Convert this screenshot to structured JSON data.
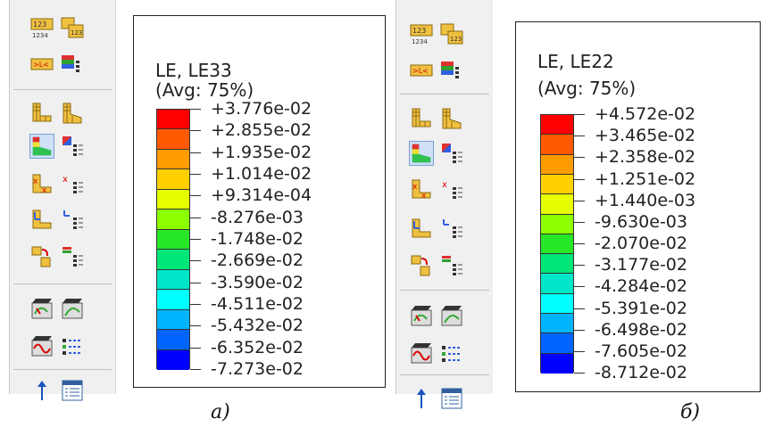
{
  "legend_a": {
    "title_line1": "LE, LE33",
    "title_line2": "(Avg: 75%)",
    "values": [
      "+3.776e-02",
      "+2.855e-02",
      "+1.935e-02",
      "+1.014e-02",
      "+9.314e-04",
      "-8.276e-03",
      "-1.748e-02",
      "-2.669e-02",
      "-3.590e-02",
      "-4.511e-02",
      "-5.432e-02",
      "-6.352e-02",
      "-7.273e-02"
    ]
  },
  "legend_b": {
    "title_line1": "LE, LE22",
    "title_line2": "(Avg: 75%)",
    "values": [
      "+4.572e-02",
      "+3.465e-02",
      "+2.358e-02",
      "+1.251e-02",
      "+1.440e-03",
      "-9.630e-03",
      "-2.070e-02",
      "-3.177e-02",
      "-4.284e-02",
      "-5.391e-02",
      "-6.498e-02",
      "-7.605e-02",
      "-8.712e-02"
    ]
  },
  "colors": [
    "#ff0000",
    "#ff5a00",
    "#ff9c00",
    "#ffd000",
    "#e6ff00",
    "#8cff00",
    "#28e628",
    "#00e678",
    "#00e6c8",
    "#00ffff",
    "#00b4ff",
    "#0064ff",
    "#0000ff"
  ],
  "captions": {
    "a": "а)",
    "b": "б)"
  },
  "toolbar_left_icons": [
    "render-uniform-icon",
    "render-multicolor-icon",
    "ply-stack-icon",
    "layer-stack-icon",
    "undeformed-shape-icon",
    "deformed-shape-icon",
    "contour-plot-icon",
    "contour-options-icon",
    "symbol-plot-icon",
    "symbol-options-icon",
    "material-orientation-icon",
    "orientation-options-icon",
    "overlay-plot-icon",
    "overlay-options-icon",
    "animate-scale-icon",
    "animate-time-icon",
    "animate-harmonic-icon",
    "animation-options-icon",
    "probe-icon",
    "report-icon"
  ],
  "toolbar_right_icons": [
    "render-uniform-icon",
    "render-multicolor-icon",
    "ply-stack-icon",
    "layer-stack-icon",
    "undeformed-shape-icon",
    "deformed-shape-icon",
    "contour-plot-icon",
    "contour-options-icon",
    "symbol-plot-icon",
    "symbol-options-icon",
    "material-orientation-icon",
    "orientation-options-icon",
    "overlay-plot-icon",
    "overlay-options-icon",
    "animate-scale-icon",
    "animate-time-icon",
    "animate-harmonic-icon",
    "animation-options-icon",
    "probe-icon",
    "report-icon"
  ]
}
